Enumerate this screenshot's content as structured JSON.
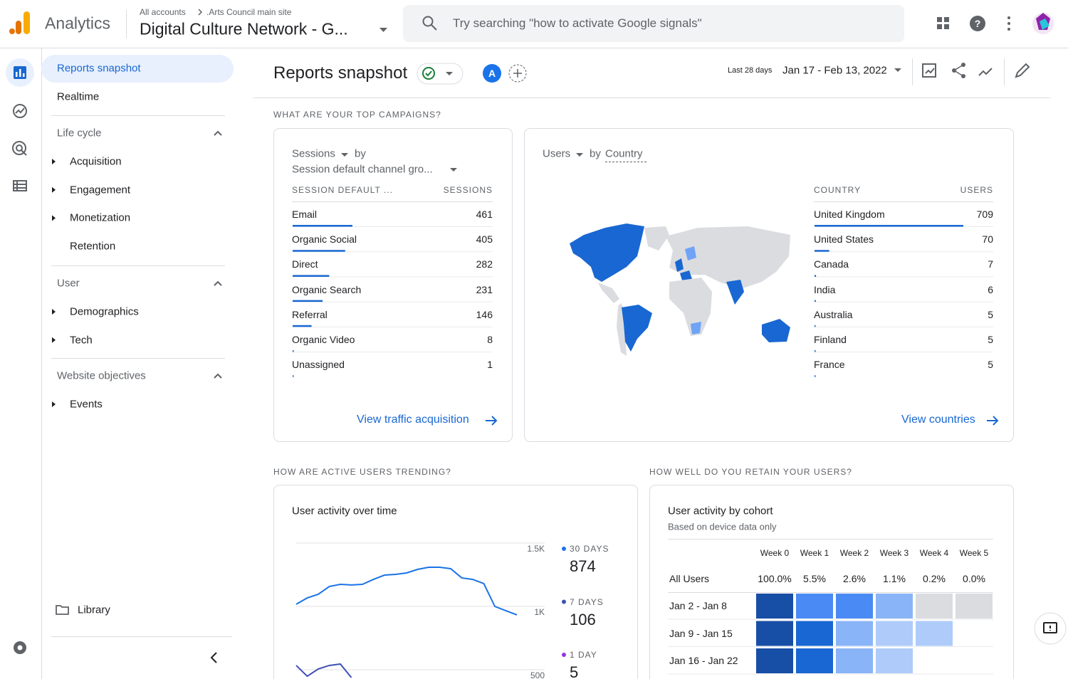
{
  "header": {
    "app_name": "Analytics",
    "breadcrumb": [
      "All accounts",
      ".Arts Council main site"
    ],
    "property": "Digital Culture Network - G...",
    "search_placeholder": "Try searching \"how to activate Google signals\""
  },
  "sidebar": {
    "items": [
      "Reports snapshot",
      "Realtime"
    ],
    "sections": [
      {
        "title": "Life cycle",
        "items": [
          "Acquisition",
          "Engagement",
          "Monetization",
          "Retention"
        ]
      },
      {
        "title": "User",
        "items": [
          "Demographics",
          "Tech"
        ]
      },
      {
        "title": "Website objectives",
        "items": [
          "Events"
        ]
      }
    ],
    "library": "Library"
  },
  "toolbar": {
    "title": "Reports snapshot",
    "comparison": "A",
    "range_label": "Last 28 days",
    "date_range": "Jan 17 - Feb 13, 2022"
  },
  "campaigns": {
    "heading": "WHAT ARE YOUR TOP CAMPAIGNS?",
    "sessions_card": {
      "type": "bar",
      "metric": "Sessions",
      "by": "by",
      "dimension": "Session default channel gro...",
      "columns": [
        "SESSION DEFAULT ...",
        "SESSIONS"
      ],
      "color": "#1967d2",
      "categories": [
        "Email",
        "Organic Social",
        "Direct",
        "Organic Search",
        "Referral",
        "Organic Video",
        "Unassigned"
      ],
      "values": [
        461,
        405,
        282,
        231,
        146,
        8,
        1
      ],
      "link": "View traffic acquisition"
    },
    "country_card": {
      "type": "bar",
      "metric": "Users",
      "by": "by",
      "dimension": "Country",
      "columns": [
        "COUNTRY",
        "USERS"
      ],
      "color": "#1967d2",
      "categories": [
        "United Kingdom",
        "United States",
        "Canada",
        "India",
        "Australia",
        "Finland",
        "France"
      ],
      "values": [
        709,
        70,
        7,
        6,
        5,
        5,
        5
      ],
      "link": "View countries"
    }
  },
  "trend": {
    "heading": "HOW ARE ACTIVE USERS TRENDING?",
    "card": {
      "type": "line",
      "title": "User activity over time",
      "ylim": [
        500,
        1500
      ],
      "yticks": [
        {
          "value": 1500,
          "label": "1.5K"
        },
        {
          "value": 1000,
          "label": "1K"
        },
        500
      ],
      "grid": true,
      "series": [
        {
          "name": "30 DAYS",
          "color": "#1a73e8",
          "latest": 874,
          "values": [
            1017,
            1067,
            1096,
            1157,
            1174,
            1169,
            1174,
            1213,
            1247,
            1253,
            1264,
            1292,
            1309,
            1309,
            1298,
            1225,
            1213,
            1180,
            1000,
            966,
            933
          ]
        },
        {
          "name": "7 DAYS",
          "color": "#3f51b5",
          "latest": 106,
          "values": [
            534,
            449,
            506,
            534,
            545,
            438
          ]
        },
        {
          "name": "1 DAY",
          "color": "#9334e6",
          "latest": 5
        }
      ]
    }
  },
  "retention": {
    "heading": "HOW WELL DO YOU RETAIN YOUR USERS?",
    "card": {
      "type": "heatmap",
      "title": "User activity by cohort",
      "subtitle": "Based on device data only",
      "columns": [
        "Week 0",
        "Week 1",
        "Week 2",
        "Week 3",
        "Week 4",
        "Week 5"
      ],
      "all_users": {
        "label": "All Users",
        "values": [
          100,
          5.5,
          2.6,
          1.1,
          0.2,
          0
        ],
        "value_labels": [
          "100.0%",
          "5.5%",
          "2.6%",
          "1.1%",
          "0.2%",
          "0.0%"
        ]
      },
      "cohorts": [
        {
          "label": "Jan 2 - Jan 8",
          "values": [
            100,
            6,
            6,
            3,
            0,
            0
          ]
        },
        {
          "label": "Jan 9 - Jan 15",
          "values": [
            100,
            9,
            3,
            2,
            2
          ]
        },
        {
          "label": "Jan 16 - Jan 22",
          "values": [
            100,
            9,
            3,
            2
          ]
        }
      ]
    }
  }
}
